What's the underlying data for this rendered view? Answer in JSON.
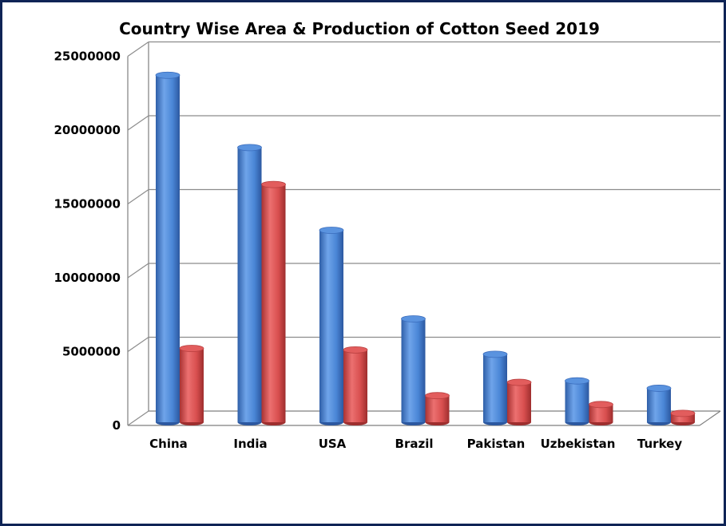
{
  "chart_data": {
    "type": "bar",
    "title": "Country Wise Area & Production of Cotton Seed 2019",
    "xlabel": "",
    "ylabel": "",
    "ylim": [
      0,
      25000000
    ],
    "yticks": [
      "0",
      "5000000",
      "10000000",
      "15000000",
      "20000000",
      "25000000"
    ],
    "categories": [
      "China",
      "India",
      "USA",
      "Brazil",
      "Pakistan",
      "Uzbekistan",
      "Turkey"
    ],
    "series": [
      {
        "color": "#4a86d6",
        "values": [
          23500000,
          18600000,
          13000000,
          7000000,
          4600000,
          2800000,
          2300000
        ]
      },
      {
        "color": "#d84f4f",
        "values": [
          5000000,
          16100000,
          4900000,
          1800000,
          2700000,
          1200000,
          600000
        ]
      }
    ],
    "grid": true,
    "legend": "none"
  }
}
